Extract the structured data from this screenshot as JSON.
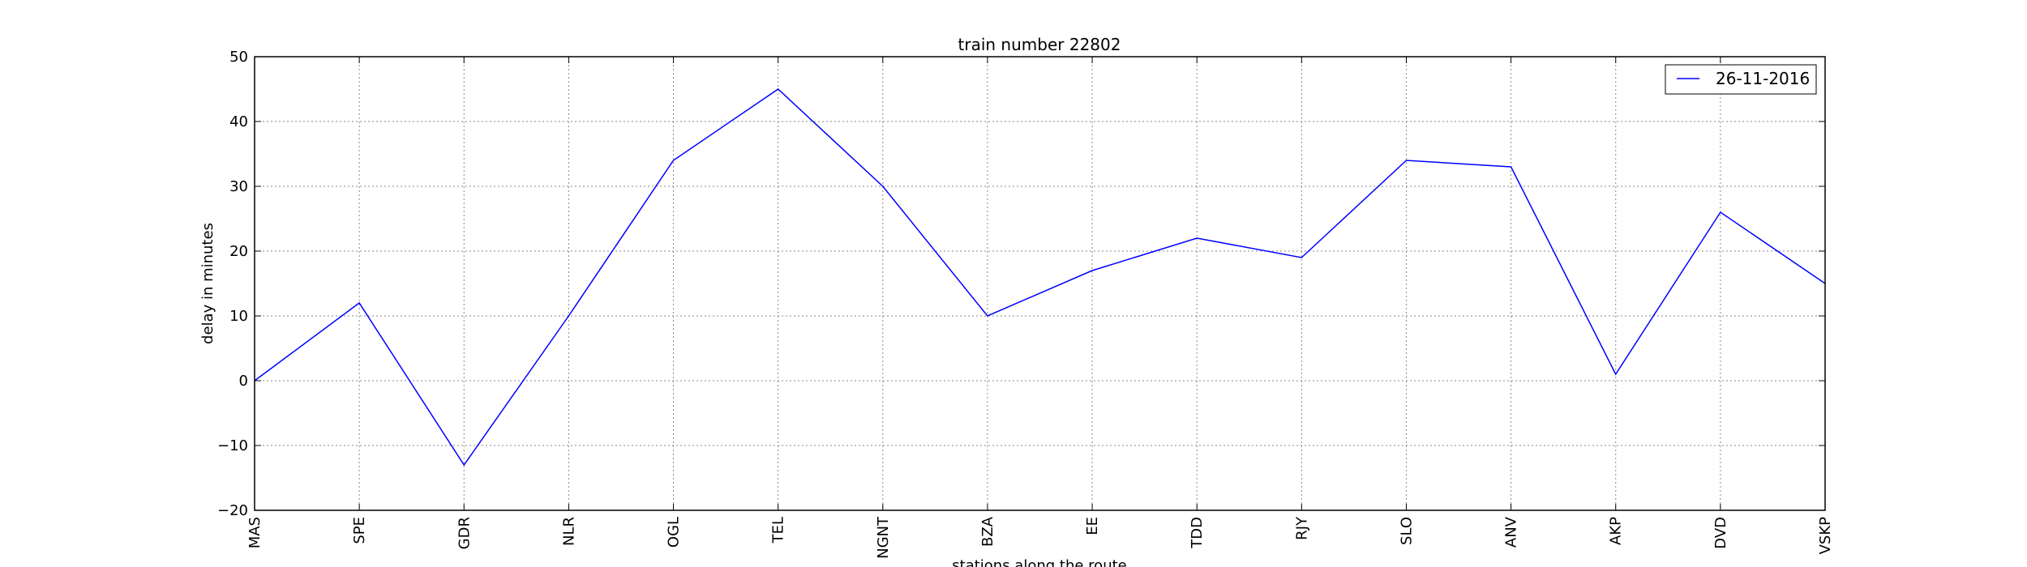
{
  "chart_data": {
    "type": "line",
    "title": "train number 22802",
    "xlabel": "stations along the route",
    "ylabel": "delay in minutes",
    "categories": [
      "MAS",
      "SPE",
      "GDR",
      "NLR",
      "OGL",
      "TEL",
      "NGNT",
      "BZA",
      "EE",
      "TDD",
      "RJY",
      "SLO",
      "ANV",
      "AKP",
      "DVD",
      "VSKP"
    ],
    "series": [
      {
        "name": "26-11-2016",
        "color": "#0000ff",
        "values": [
          0,
          12,
          -13,
          10,
          34,
          45,
          30,
          10,
          17,
          22,
          19,
          34,
          33,
          1,
          26,
          15
        ]
      }
    ],
    "ylim": [
      -20,
      50
    ],
    "yticks": [
      -20,
      -10,
      0,
      10,
      20,
      30,
      40,
      50
    ],
    "ytick_labels": [
      "−20",
      "−10",
      "0",
      "10",
      "20",
      "30",
      "40",
      "50"
    ],
    "grid": true,
    "legend_position": "top-right"
  }
}
